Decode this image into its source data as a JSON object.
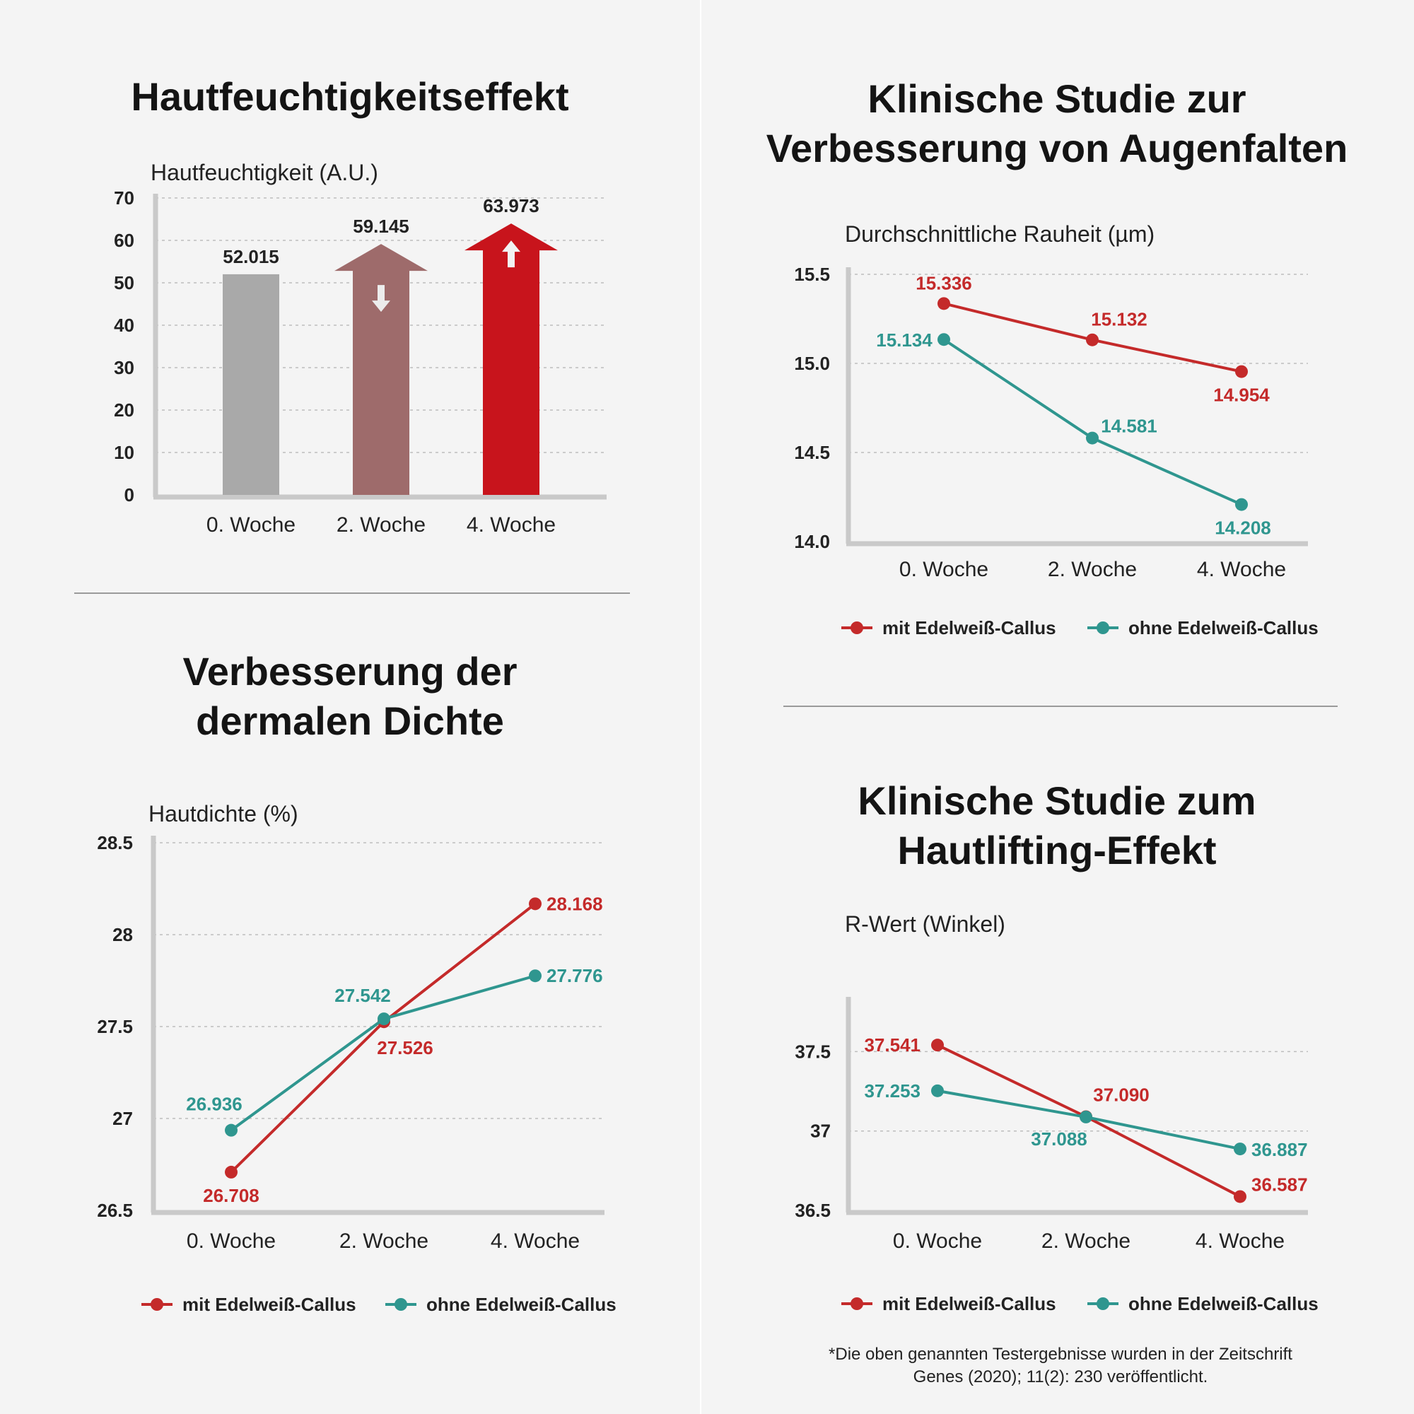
{
  "colors": {
    "red": "#c42a2a",
    "teal": "#2f968f",
    "gray": "#a9a9a9",
    "mauve": "#9e6b6b",
    "grid": "#bdbdbd",
    "axis": "#c9c9c9"
  },
  "chart_data": [
    {
      "id": "moisture",
      "type": "bar",
      "title": "Hautfeuchtigkeitseffekt",
      "ylabel": "Hautfeuchtigkeit (A.U.)",
      "categories": [
        "0. Woche",
        "2. Woche",
        "4. Woche"
      ],
      "values": [
        52.015,
        59.145,
        63.973
      ],
      "value_labels": [
        "52.015",
        "59.145",
        "63.973"
      ],
      "bar_styles": [
        "plain",
        "arrow-down",
        "arrow-up"
      ],
      "bar_colors": [
        "#a9a9a9",
        "#9e6b6b",
        "#c8141c"
      ],
      "yticks": [
        "0",
        "10",
        "20",
        "30",
        "40",
        "50",
        "60",
        "70"
      ],
      "ylim": [
        0,
        70
      ],
      "grid": true
    },
    {
      "id": "wrinkle",
      "type": "line",
      "title": [
        "Klinische Studie zur",
        "Verbesserung von Augenfalten"
      ],
      "ylabel": "Durchschnittliche Rauheit (µm)",
      "categories": [
        "0. Woche",
        "2. Woche",
        "4. Woche"
      ],
      "series": [
        {
          "name": "mit Edelweiß-Callus",
          "color": "#c42a2a",
          "values": [
            15.336,
            15.132,
            14.954
          ],
          "labels": [
            "15.336",
            "15.132",
            "14.954"
          ]
        },
        {
          "name": "ohne Edelweiß-Callus",
          "color": "#2f968f",
          "values": [
            15.134,
            14.581,
            14.208
          ],
          "labels": [
            "15.134",
            "14.581",
            "14.208"
          ]
        }
      ],
      "yticks": [
        "14.0",
        "14.5",
        "15.0",
        "15.5"
      ],
      "ylim": [
        14.0,
        15.5
      ],
      "grid": true,
      "legend": "bottom"
    },
    {
      "id": "density",
      "type": "line",
      "title": [
        "Verbesserung der",
        "dermalen Dichte"
      ],
      "ylabel": "Hautdichte (%)",
      "categories": [
        "0. Woche",
        "2. Woche",
        "4. Woche"
      ],
      "series": [
        {
          "name": "mit Edelweiß-Callus",
          "color": "#c42a2a",
          "values": [
            26.708,
            27.526,
            28.168
          ],
          "labels": [
            "26.708",
            "27.526",
            "28.168"
          ]
        },
        {
          "name": "ohne Edelweiß-Callus",
          "color": "#2f968f",
          "values": [
            26.936,
            27.542,
            27.776
          ],
          "labels": [
            "26.936",
            "27.542",
            "27.776"
          ]
        }
      ],
      "yticks": [
        "26.5",
        "27",
        "27.5",
        "28",
        "28.5"
      ],
      "ylim": [
        26.5,
        28.5
      ],
      "grid": true,
      "legend": "bottom"
    },
    {
      "id": "lifting",
      "type": "line",
      "title": [
        "Klinische Studie zum",
        "Hautlifting-Effekt"
      ],
      "ylabel": "R-Wert (Winkel)",
      "categories": [
        "0. Woche",
        "2. Woche",
        "4. Woche"
      ],
      "series": [
        {
          "name": "mit Edelweiß-Callus",
          "color": "#c42a2a",
          "values": [
            37.541,
            37.09,
            36.587
          ],
          "labels": [
            "37.541",
            "37.090",
            "36.587"
          ]
        },
        {
          "name": "ohne Edelweiß-Callus",
          "color": "#2f968f",
          "values": [
            37.253,
            37.088,
            36.887
          ],
          "labels": [
            "37.253",
            "37.088",
            "36.887"
          ]
        }
      ],
      "yticks": [
        "36.5",
        "37",
        "37.5"
      ],
      "ylim": [
        36.5,
        37.8
      ],
      "grid": true,
      "legend": "bottom"
    }
  ],
  "footnote": {
    "line1": "*Die oben genannten Testergebnisse wurden in der Zeitschrift",
    "line2": "Genes (2020); 11(2): 230 veröffentlicht."
  }
}
